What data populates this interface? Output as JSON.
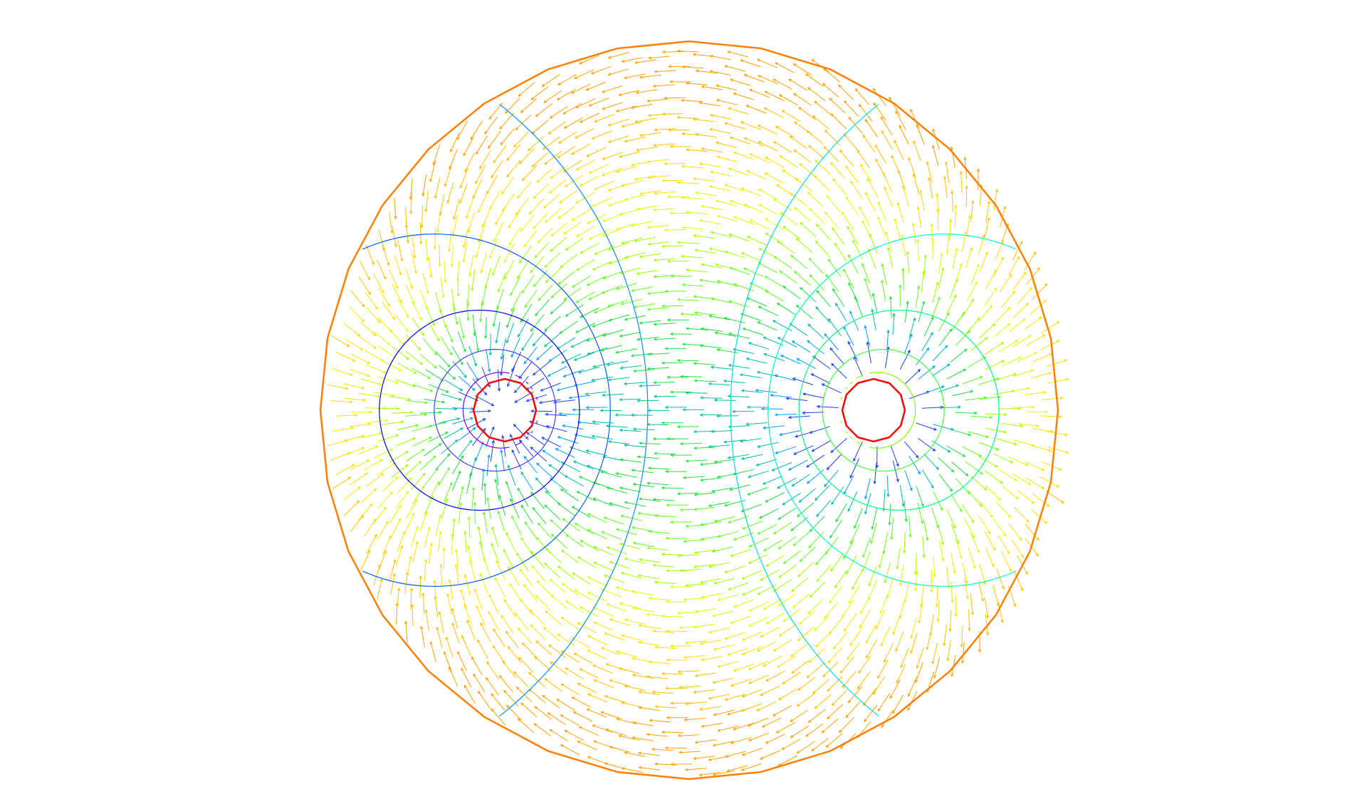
{
  "figure": {
    "kind": "potential-flow-field",
    "description_elements": [
      "outer-boundary",
      "source-hole",
      "sink-hole",
      "equipotential-lines",
      "velocity-arrows"
    ],
    "colors": {
      "boundary": "#ff8000",
      "holes": "#ff0000",
      "palette": [
        "#0000ff",
        "#0080ff",
        "#00ffff",
        "#00ff80",
        "#80ff00",
        "#ffff00",
        "#ffc000",
        "#ff8000",
        "#ff00ff",
        "#c000ff"
      ]
    },
    "domain": {
      "outer_radius": 1.0,
      "hole_radius": 0.085,
      "left_hole_x": -0.5,
      "right_hole_x": 0.5
    }
  }
}
